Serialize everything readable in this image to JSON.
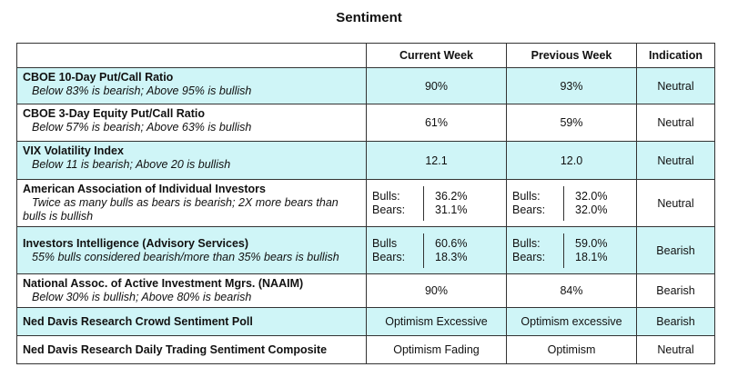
{
  "title": "Sentiment",
  "headers": {
    "col1": "",
    "current": "Current Week",
    "previous": "Previous Week",
    "indication": "Indication"
  },
  "rows": [
    {
      "name": "CBOE 10-Day Put/Call Ratio",
      "desc": "Below 83% is bearish; Above 95% is bullish",
      "current": "90%",
      "previous": "93%",
      "indication": "Neutral"
    },
    {
      "name": "CBOE 3-Day Equity Put/Call Ratio",
      "desc": "Below 57% is bearish; Above 63% is bullish",
      "current": "61%",
      "previous": "59%",
      "indication": "Neutral"
    },
    {
      "name": "VIX Volatility Index",
      "desc": "Below 11 is bearish; Above 20 is bullish",
      "current": "12.1",
      "previous": "12.0",
      "indication": "Neutral"
    },
    {
      "name": "American Association of Individual Investors",
      "desc": "Twice as many bulls as bears is bearish; 2X more bears than",
      "desc2": "bulls is bullish",
      "current": {
        "label1": "Bulls:",
        "label2": "Bears:",
        "val1": "36.2%",
        "val2": "31.1%"
      },
      "previous": {
        "label1": "Bulls:",
        "label2": "Bears:",
        "val1": "32.0%",
        "val2": "32.0%"
      },
      "indication": "Neutral"
    },
    {
      "name": "Investors Intelligence (Advisory Services)",
      "desc": "55% bulls considered bearish/more than 35% bears is bullish",
      "current": {
        "label1": "Bulls",
        "label2": "Bears:",
        "val1": "60.6%",
        "val2": "18.3%"
      },
      "previous": {
        "label1": "Bulls:",
        "label2": "Bears:",
        "val1": "59.0%",
        "val2": "18.1%"
      },
      "indication": "Bearish"
    },
    {
      "name": "National Assoc. of Active Investment Mgrs. (NAAIM)",
      "desc": "Below 30% is bullish; Above 80% is bearish",
      "current": "90%",
      "previous": "84%",
      "indication": "Bearish"
    },
    {
      "name": "Ned Davis Research Crowd Sentiment Poll",
      "current": "Optimism Excessive",
      "previous": "Optimism excessive",
      "indication": "Bearish"
    },
    {
      "name": "Ned Davis Research Daily Trading Sentiment Composite",
      "current": "Optimism Fading",
      "previous": "Optimism",
      "indication": "Neutral"
    }
  ],
  "colors": {
    "shade": "#cff5f7",
    "border": "#333333"
  }
}
